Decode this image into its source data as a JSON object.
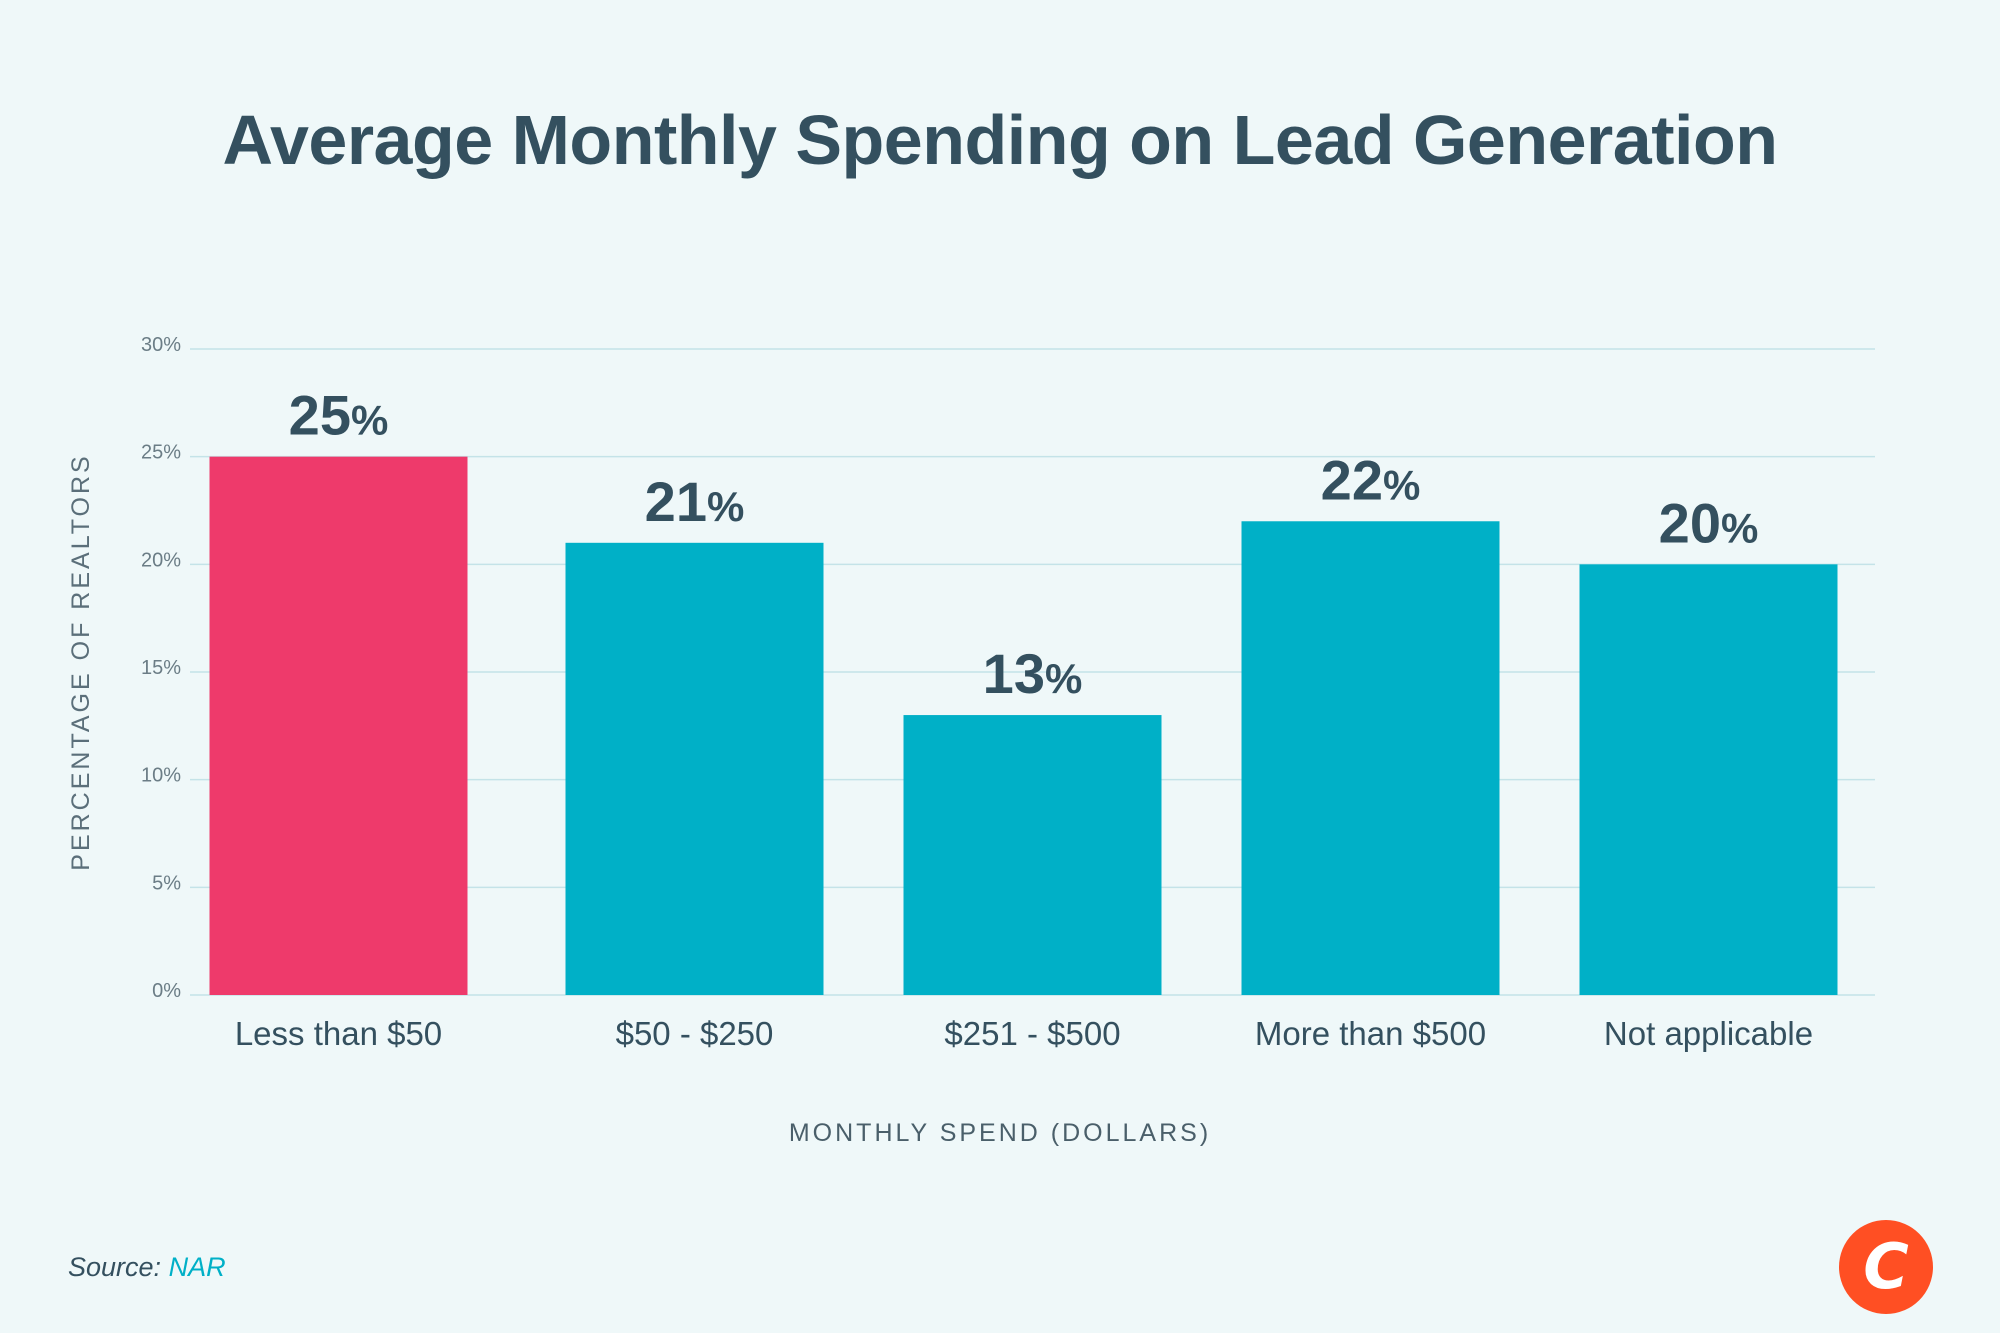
{
  "chart_data": {
    "type": "bar",
    "title": "Average Monthly Spending on Lead Generation",
    "xlabel": "MONTHLY SPEND (DOLLARS)",
    "ylabel": "PERCENTAGE OF REALTORS",
    "categories": [
      "Less than $50",
      "$50 - $250",
      "$251 - $500",
      "More than $500",
      "Not applicable"
    ],
    "values": [
      25,
      21,
      13,
      22,
      20
    ],
    "data_labels": [
      "25",
      "21",
      "13",
      "22",
      "20"
    ],
    "data_label_suffix": "%",
    "ylim": [
      0,
      30
    ],
    "yticks": [
      "0%",
      "5%",
      "10%",
      "15%",
      "20%",
      "25%",
      "30%"
    ],
    "grid": true,
    "colors": [
      "#ee3a6b",
      "#00b0c7",
      "#00b0c7",
      "#00b0c7",
      "#00b0c7"
    ]
  },
  "source": {
    "label": "Source:",
    "name": "NAR"
  },
  "logo": {
    "text": "C",
    "color": "#ff4f23"
  }
}
